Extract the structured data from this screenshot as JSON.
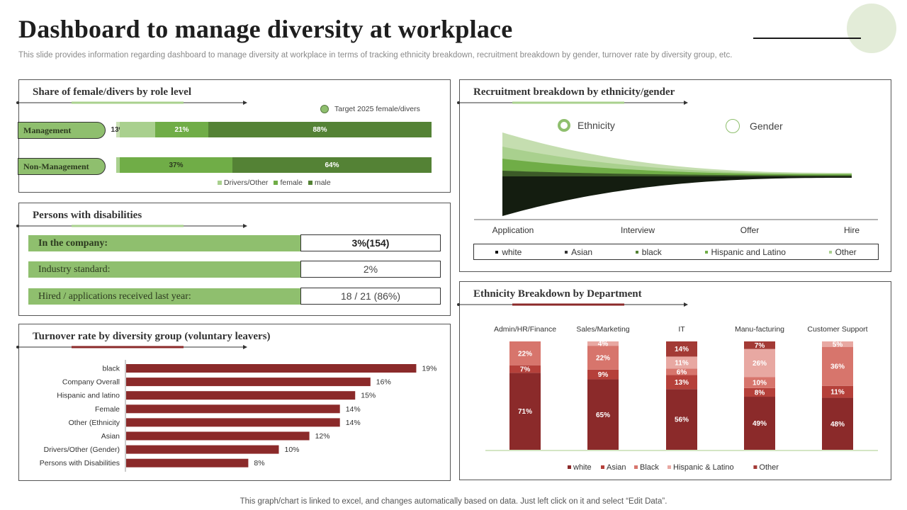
{
  "header": {
    "title": "Dashboard to manage diversity at workplace",
    "subtitle": "This slide provides information regarding dashboard to manage diversity at workplace in terms of tracking ethnicity breakdown, recruitment breakdown by gender, turnover rate by diversity group, etc."
  },
  "footer": "This graph/chart is linked to excel,  and changes automatically based on data. Just left click on it and select “Edit Data”.",
  "colors": {
    "green_light": "#a9d08e",
    "green_mid": "#70ad47",
    "green_dark": "#548235",
    "maroon": "#8b2a2a",
    "red": "#b5403a",
    "salmon": "#d7756c",
    "pink": "#e8a8a2"
  },
  "role_panel": {
    "title": "Share of female/divers by role level",
    "target_label": "Target 2025 female/divers",
    "legend": [
      "Drivers/Other",
      "female",
      "male"
    ]
  },
  "disabilities": {
    "title": "Persons with disabilities",
    "rows": [
      {
        "label": "In the company:",
        "value": "3%(154)"
      },
      {
        "label": "Industry standard:",
        "value": "2%"
      },
      {
        "label": "Hired / applications received last year:",
        "value": "18 / 21 (86%)"
      }
    ]
  },
  "turnover_panel": {
    "title": "Turnover rate by diversity group (voluntary  leavers)"
  },
  "recruit_panel": {
    "title": "Recruitment  breakdown  by ethnicity/gender",
    "toggle_ethnicity": "Ethnicity",
    "toggle_gender": "Gender"
  },
  "dept_panel": {
    "title": "Ethnicity  Breakdown  by Department"
  },
  "chart_data": [
    {
      "id": "role",
      "type": "bar",
      "orientation": "horizontal-stacked",
      "title": "Share of female/divers by role level",
      "categories": [
        "Management",
        "Non-Management"
      ],
      "series": [
        {
          "name": "Drivers/Other",
          "values": [
            null,
            null
          ],
          "labels": [
            "13%",
            ""
          ]
        },
        {
          "name": "female",
          "values": [
            21,
            37
          ],
          "labels": [
            "21%",
            "37%"
          ]
        },
        {
          "name": "male",
          "values": [
            88,
            64
          ],
          "labels": [
            "88%",
            "64%"
          ]
        }
      ]
    },
    {
      "id": "turnover",
      "type": "bar",
      "orientation": "horizontal",
      "title": "Turnover rate by diversity group (voluntary leavers)",
      "categories": [
        "black",
        "Company Overall",
        "Hispanic and latino",
        "Female",
        "Other (Ethnicity",
        "Asian",
        "Drivers/Other (Gender)",
        "Persons with Disabilities"
      ],
      "values": [
        19,
        16,
        15,
        14,
        14,
        12,
        10,
        8
      ],
      "value_labels": [
        "19%",
        "16%",
        "15%",
        "14%",
        "14%",
        "12%",
        "10%",
        "8%"
      ],
      "xlim": [
        0,
        20
      ]
    },
    {
      "id": "recruitment",
      "type": "area",
      "title": "Recruitment breakdown by ethnicity/gender",
      "categories": [
        "Application",
        "Interview",
        "Offer",
        "Hire"
      ],
      "series": [
        "white",
        "Asian",
        "black",
        "Hispanic and Latino",
        "Other"
      ]
    },
    {
      "id": "dept",
      "type": "bar",
      "orientation": "vertical-stacked-100",
      "title": "Ethnicity Breakdown by Department",
      "categories": [
        "Admin/HR/Finance",
        "Sales/Marketing",
        "IT",
        "Manu-facturing",
        "Customer Support"
      ],
      "series": [
        {
          "name": "white",
          "values": [
            71,
            65,
            56,
            49,
            48
          ]
        },
        {
          "name": "Asian",
          "values": [
            7,
            9,
            13,
            8,
            11
          ]
        },
        {
          "name": "Black",
          "values": [
            22,
            22,
            6,
            10,
            36
          ]
        },
        {
          "name": "Hispanic & Latino",
          "values": [
            0,
            4,
            11,
            26,
            5
          ]
        },
        {
          "name": "Other",
          "values": [
            0,
            0,
            14,
            7,
            0
          ]
        }
      ]
    }
  ]
}
